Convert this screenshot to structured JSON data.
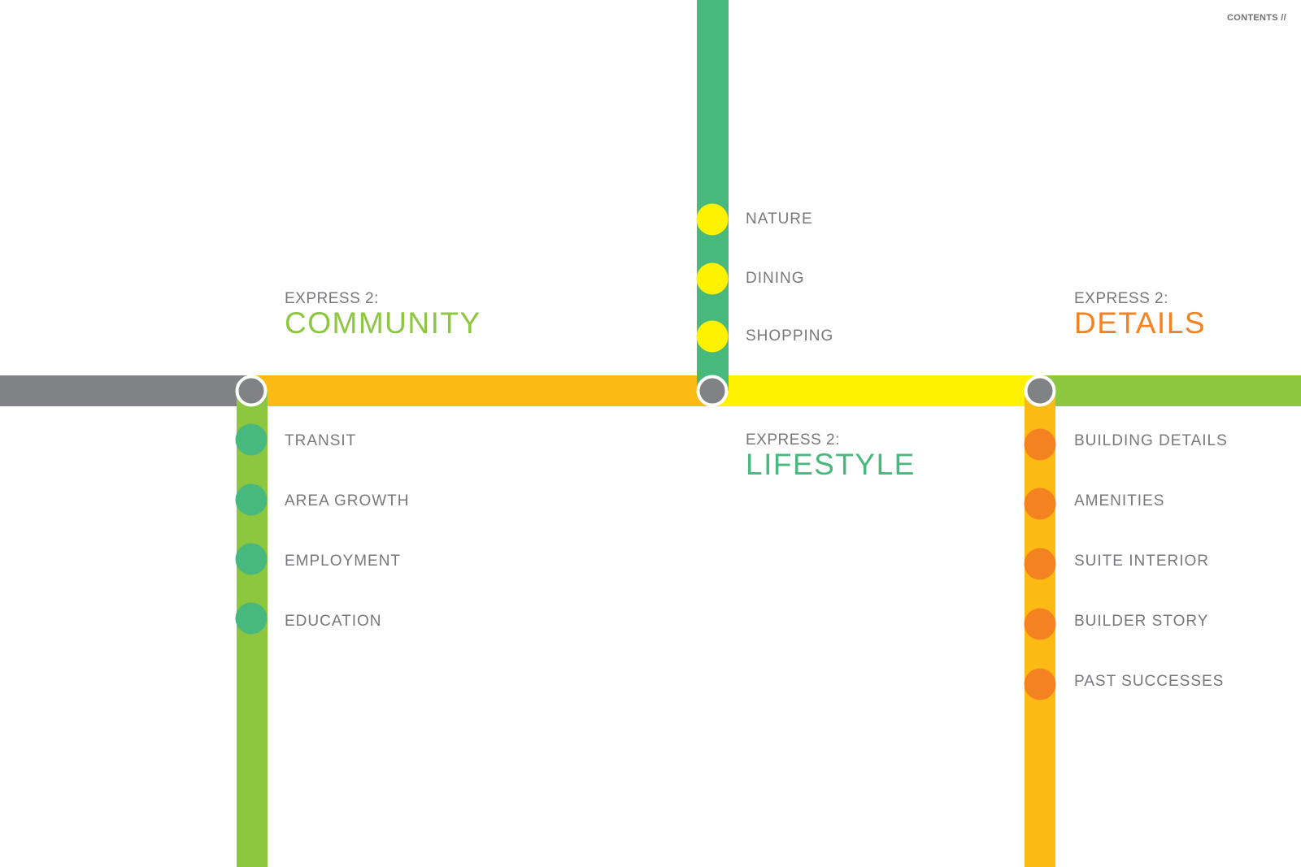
{
  "header": {
    "contents_link": "CONTENTS //"
  },
  "colors": {
    "gray": "#808285",
    "orange_line": "#fcbb14",
    "yellow": "#fff200",
    "green_line": "#8dc63f",
    "teal": "#48b97c",
    "orange_dot": "#f58220",
    "text": "#77787b"
  },
  "sections": {
    "community": {
      "prefix": "EXPRESS 2:",
      "title": "COMMUNITY",
      "color": "#8dc63f",
      "stops": [
        "TRANSIT",
        "AREA GROWTH",
        "EMPLOYMENT",
        "EDUCATION"
      ]
    },
    "lifestyle": {
      "prefix": "EXPRESS 2:",
      "title": "LIFESTYLE",
      "color": "#48b97c",
      "stops": [
        "NATURE",
        "DINING",
        "SHOPPING"
      ]
    },
    "details": {
      "prefix": "EXPRESS 2:",
      "title": "DETAILS",
      "color": "#f58220",
      "stops": [
        "BUILDING DETAILS",
        "AMENITIES",
        "SUITE INTERIOR",
        "BUILDER STORY",
        "PAST SUCCESSES"
      ]
    }
  }
}
